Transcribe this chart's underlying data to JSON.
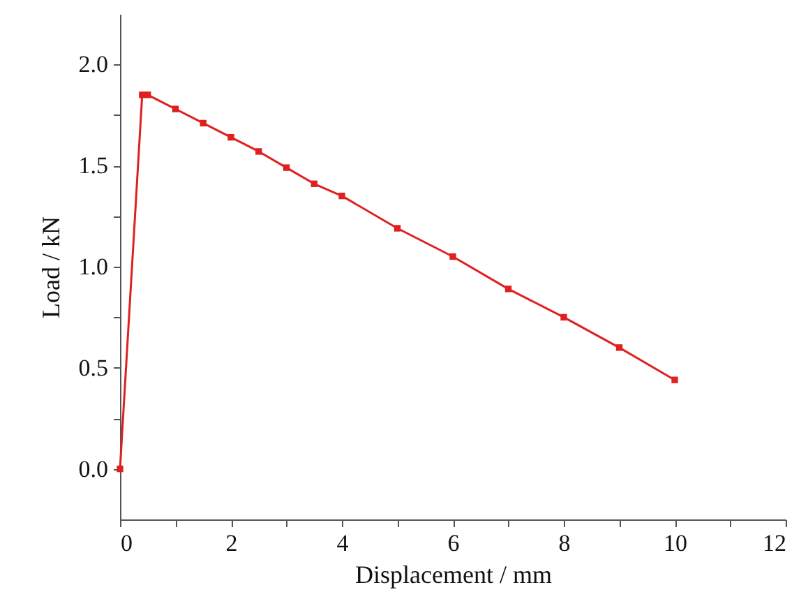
{
  "chart_data": {
    "type": "line",
    "xlabel": "Displacement / mm",
    "ylabel": "Load / kN",
    "x": [
      0,
      0.4,
      0.5,
      1,
      1.5,
      2,
      2.5,
      3,
      3.5,
      4,
      5,
      6,
      7,
      8,
      9,
      10
    ],
    "series": [
      {
        "color": "#e02020",
        "values": [
          0,
          1.85,
          1.85,
          1.78,
          1.71,
          1.64,
          1.57,
          1.49,
          1.41,
          1.35,
          1.19,
          1.05,
          0.89,
          0.75,
          0.6,
          0.44
        ]
      }
    ],
    "xlim": [
      0,
      12
    ],
    "xticks": [
      0,
      {
        "value": 1,
        "label": null
      },
      2,
      {
        "value": 3,
        "label": null
      },
      4,
      {
        "value": 5,
        "label": null
      },
      6,
      {
        "value": 7,
        "label": null
      },
      8,
      {
        "value": 9,
        "label": null
      },
      10,
      {
        "value": 11,
        "label": null
      },
      12
    ],
    "ylim": [
      -0.25,
      2.25
    ],
    "yticks": [
      {
        "value": 0,
        "label": "0.0"
      },
      {
        "value": 0.25,
        "label": null
      },
      {
        "value": 0.5,
        "label": "0.5"
      },
      {
        "value": 0.75,
        "label": null
      },
      {
        "value": 1,
        "label": "1.0"
      },
      {
        "value": 1.25,
        "label": null
      },
      {
        "value": 1.5,
        "label": "1.5"
      },
      {
        "value": 1.75,
        "label": null
      },
      {
        "value": 2,
        "label": "2.0"
      }
    ],
    "grid": false,
    "marker": "square",
    "line_style": "solid"
  }
}
